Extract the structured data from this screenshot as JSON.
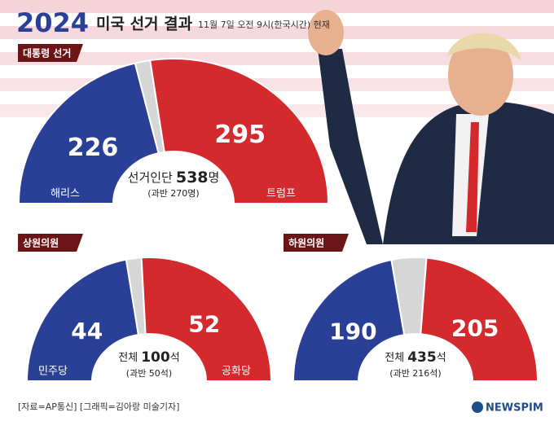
{
  "header": {
    "logo": "2024",
    "title": "미국 선거 결과",
    "date": "11월 7일 오전 9시(한국시간) 현재"
  },
  "footer": {
    "source": "[자료=AP통신] [그래픽=김아랑 미술기자]",
    "brand": "NEWSPIM"
  },
  "chart_data": [
    {
      "type": "half-donut",
      "title": "대통령 선거",
      "categories": [
        "해리스",
        null,
        "트럼프"
      ],
      "values": [
        226,
        17,
        295
      ],
      "colors": [
        "#2a3f96",
        "#d6d6d6",
        "#d42a2e"
      ],
      "center_prefix": "선거인단",
      "total": 538,
      "center_suffix": "명",
      "subtitle": "(과반 270명)"
    },
    {
      "type": "half-donut",
      "title": "상원의원",
      "categories": [
        "민주당",
        null,
        "공화당"
      ],
      "values": [
        44,
        4,
        52
      ],
      "colors": [
        "#2a3f96",
        "#d6d6d6",
        "#d42a2e"
      ],
      "center_prefix": "전체",
      "total": 100,
      "center_suffix": "석",
      "subtitle": "(과반 50석)"
    },
    {
      "type": "half-donut",
      "title": "하원의원",
      "categories": [
        null,
        null,
        null
      ],
      "values": [
        190,
        40,
        205
      ],
      "colors": [
        "#2a3f96",
        "#d6d6d6",
        "#d42a2e"
      ],
      "center_prefix": "전체",
      "total": 435,
      "center_suffix": "석",
      "subtitle": "(과반 216석)"
    }
  ]
}
